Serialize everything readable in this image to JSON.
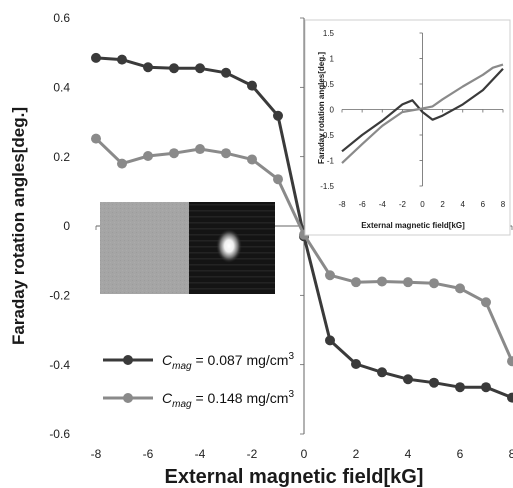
{
  "chart_data": [
    {
      "type": "line",
      "xlabel": "External magnetic field[kG]",
      "ylabel": "Faraday rotation angles[deg.]",
      "xlim": [
        -8,
        8
      ],
      "ylim": [
        -0.6,
        0.6
      ],
      "x_ticks": [
        -8,
        -6,
        -4,
        -2,
        0,
        2,
        4,
        6,
        8
      ],
      "y_ticks": [
        -0.6,
        -0.4,
        -0.2,
        0,
        0.2,
        0.4,
        0.6
      ],
      "x_tick_labels": [
        "-8",
        "-6",
        "-4",
        "-2",
        "0",
        "2",
        "4",
        "6",
        "8"
      ],
      "y_tick_labels": [
        "-0.6",
        "-0.4",
        "-0.2",
        "0",
        "0.2",
        "0.4",
        "0.6"
      ],
      "legend_position": "bottom-left",
      "series": [
        {
          "legend_symbol": "C",
          "legend_subscript": "mag",
          "legend_value": " = 0.087 mg/cm",
          "legend_superscript": "3",
          "color": "#3a3a3a",
          "x": [
            -8,
            -7,
            -6,
            -5,
            -4,
            -3,
            -2,
            -1,
            0,
            1,
            2,
            3,
            4,
            5,
            6,
            7,
            8
          ],
          "y": [
            0.485,
            0.48,
            0.458,
            0.455,
            0.455,
            0.442,
            0.405,
            0.318,
            -0.03,
            -0.33,
            -0.398,
            -0.422,
            -0.442,
            -0.452,
            -0.465,
            -0.465,
            -0.495
          ]
        },
        {
          "legend_symbol": "C",
          "legend_subscript": "mag",
          "legend_value": " = 0.148 mg/cm",
          "legend_superscript": "3",
          "color": "#8a8a8a",
          "x": [
            -8,
            -7,
            -6,
            -5,
            -4,
            -3,
            -2,
            -1,
            0,
            1,
            2,
            3,
            4,
            5,
            6,
            7,
            8
          ],
          "y": [
            0.252,
            0.18,
            0.202,
            0.21,
            0.222,
            0.21,
            0.192,
            0.135,
            -0.025,
            -0.142,
            -0.162,
            -0.16,
            -0.162,
            -0.165,
            -0.18,
            -0.22,
            -0.39
          ]
        }
      ]
    },
    {
      "type": "line",
      "xlabel": "External magnetic field[kG]",
      "ylabel": "Faraday rotation angles[deg.]",
      "xlim": [
        -8,
        8
      ],
      "ylim": [
        -1.5,
        1.5
      ],
      "x_ticks": [
        -8,
        -6,
        -4,
        -2,
        0,
        2,
        4,
        6,
        8
      ],
      "y_ticks": [
        -1.5,
        -1,
        -0.5,
        0,
        0.5,
        1,
        1.5
      ],
      "x_tick_labels": [
        "-8",
        "-6",
        "-4",
        "-2",
        "0",
        "2",
        "4",
        "6",
        "8"
      ],
      "y_tick_labels": [
        "-1.5",
        "-1",
        "-0.5",
        "0",
        "0.5",
        "1",
        "1.5"
      ],
      "series": [
        {
          "color": "#3a3a3a",
          "x": [
            -8,
            -6,
            -4,
            -2,
            -1,
            0,
            1,
            2,
            4,
            6,
            8
          ],
          "y": [
            -0.82,
            -0.5,
            -0.22,
            0.1,
            0.18,
            -0.05,
            -0.2,
            -0.12,
            0.1,
            0.38,
            0.8
          ]
        },
        {
          "color": "#8a8a8a",
          "x": [
            -8,
            -6,
            -4,
            -2,
            0,
            1,
            2,
            4,
            6,
            7,
            8
          ],
          "y": [
            -1.05,
            -0.68,
            -0.32,
            -0.05,
            0.02,
            0.06,
            0.2,
            0.45,
            0.68,
            0.82,
            0.88
          ]
        }
      ]
    }
  ],
  "images": {
    "left_panel": "bright-field-image",
    "right_panel": "dark-field-spot-image"
  }
}
